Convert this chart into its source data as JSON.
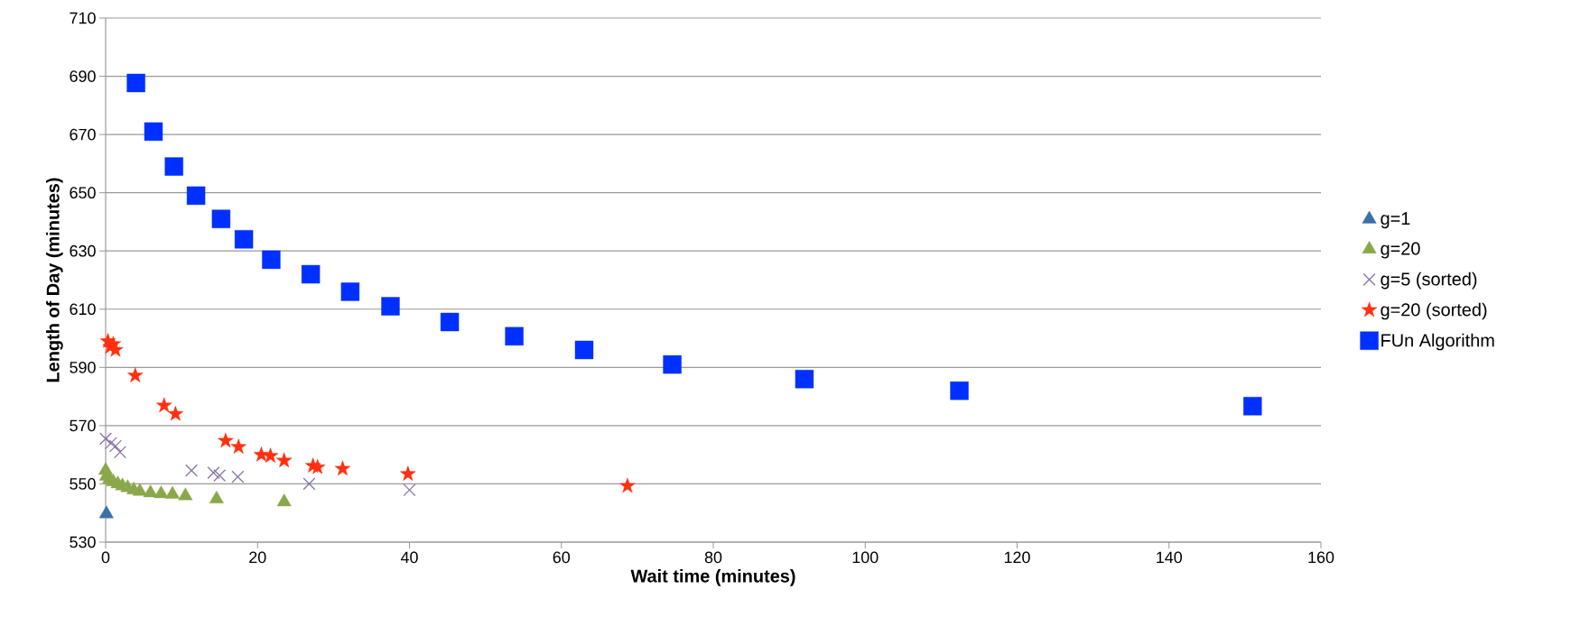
{
  "chart_data": {
    "type": "scatter",
    "xlabel": "Wait time (minutes)",
    "ylabel": "Length of Day (minutes)",
    "xlim": [
      0,
      160
    ],
    "ylim": [
      530,
      710
    ],
    "xticks": [
      0,
      20,
      40,
      60,
      80,
      100,
      120,
      140,
      160
    ],
    "yticks": [
      530,
      550,
      570,
      590,
      610,
      630,
      650,
      670,
      690,
      710
    ],
    "grid": "y",
    "legend": "right",
    "series": [
      {
        "name": "g=1",
        "color": "#3a6fa8",
        "marker": "triangle",
        "x": [
          0.1
        ],
        "values": [
          539.7
        ]
      },
      {
        "name": "g=20",
        "color": "#8aa84a",
        "marker": "triangle",
        "x": [
          0.0,
          0.1,
          0.5,
          1.0,
          1.6,
          2.2,
          2.9,
          3.7,
          4.5,
          5.9,
          7.3,
          8.8,
          10.5,
          14.6,
          23.5
        ],
        "values": [
          554.6,
          552.6,
          551.6,
          550.7,
          550.0,
          549.3,
          548.7,
          547.9,
          547.4,
          546.9,
          546.6,
          546.4,
          545.9,
          544.8,
          543.8
        ]
      },
      {
        "name": "g=5 (sorted)",
        "color": "#8a74a8",
        "marker": "cross",
        "x": [
          0.0,
          0.7,
          1.3,
          1.9,
          11.3,
          14.2,
          15.0,
          17.4,
          26.8,
          40.0
        ],
        "values": [
          565.5,
          564.0,
          563.0,
          560.9,
          554.6,
          553.8,
          552.9,
          552.4,
          550.0,
          547.9
        ]
      },
      {
        "name": "g=20 (sorted)",
        "color": "#ff3010",
        "marker": "star",
        "x": [
          0.3,
          0.6,
          1.0,
          1.3,
          3.9,
          7.7,
          9.2,
          15.8,
          17.5,
          20.5,
          21.7,
          23.5,
          27.3,
          27.9,
          31.2,
          39.8,
          68.7
        ],
        "values": [
          599,
          597,
          598,
          596,
          587.2,
          576.9,
          574.0,
          564.8,
          562.7,
          560.0,
          559.6,
          558.0,
          556.2,
          555.7,
          555.2,
          553.4,
          549.3
        ]
      },
      {
        "name": "FUn Algorithm",
        "color": "#0030ff",
        "marker": "square",
        "x": [
          4.0,
          6.3,
          9.0,
          11.9,
          15.2,
          18.2,
          21.8,
          27.0,
          32.2,
          37.5,
          45.3,
          53.8,
          63.0,
          74.6,
          92.0,
          112.4,
          151.0
        ],
        "values": [
          687.7,
          671,
          659,
          649,
          641,
          634,
          627,
          622,
          616,
          611,
          605.6,
          600.7,
          596,
          591,
          586,
          582,
          576.7
        ]
      }
    ]
  }
}
